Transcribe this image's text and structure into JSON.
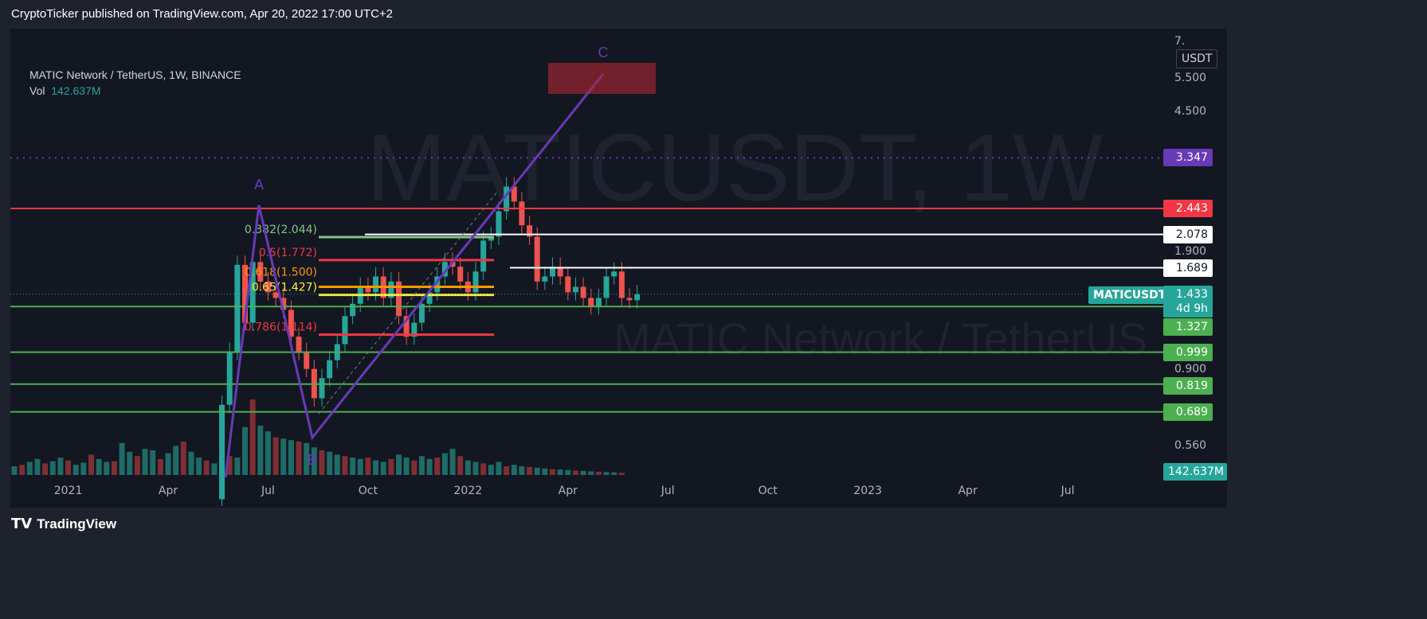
{
  "header": {
    "text": "CryptoTicker published on TradingView.com, Apr 20, 2022 17:00 UTC+2"
  },
  "legend": {
    "symbol": "MATIC Network / TetherUS, 1W, BINANCE",
    "vol_label": "Vol",
    "vol_value": "142.637M"
  },
  "watermark": {
    "line1": "MATICUSDT, 1W",
    "line2": "MATIC Network / TetherUS"
  },
  "footer": {
    "logo": "TradingView"
  },
  "colors": {
    "up": "#26a69a",
    "down": "#ef5350",
    "purple": "#673ab7",
    "green": "#4caf50",
    "red": "#f23645"
  },
  "chart_data": {
    "type": "candlestick",
    "title": "MATIC Network / TetherUS, 1W, BINANCE",
    "yscale": "log",
    "ylim": [
      0.5,
      7.2
    ],
    "currency": "USDT",
    "y_ticks": [
      "7.",
      "5.500",
      "4.500",
      "1.900",
      "0.900",
      "0.560"
    ],
    "x_ticks": [
      {
        "label": "2021",
        "w": 7
      },
      {
        "label": "Apr",
        "w": 20
      },
      {
        "label": "Jul",
        "w": 33
      },
      {
        "label": "Oct",
        "w": 46
      },
      {
        "label": "2022",
        "w": 59
      },
      {
        "label": "Apr",
        "w": 72
      },
      {
        "label": "Jul",
        "w": 85
      },
      {
        "label": "Oct",
        "w": 98
      },
      {
        "label": "2023",
        "w": 111
      },
      {
        "label": "Apr",
        "w": 124
      },
      {
        "label": "Jul",
        "w": 137
      }
    ],
    "closes_from_week27": [
      0.72,
      1.0,
      1.72,
      1.2,
      1.75,
      1.55,
      1.45,
      1.4,
      1.3,
      1.1,
      1.0,
      0.9,
      0.75,
      0.85,
      0.95,
      1.05,
      1.25,
      1.35,
      1.5,
      1.45,
      1.6,
      1.4,
      1.55,
      1.25,
      1.1,
      1.2,
      1.35,
      1.45,
      1.6,
      1.75,
      1.7,
      1.55,
      1.45,
      1.65,
      2.0,
      2.05,
      2.4,
      2.8,
      2.55,
      2.2,
      2.05,
      1.55,
      1.6,
      1.7,
      1.6,
      1.45,
      1.5,
      1.4,
      1.33,
      1.4,
      1.6,
      1.65,
      1.4,
      1.38,
      1.433
    ],
    "first_open": 0.4,
    "volume_millions": [
      60,
      70,
      90,
      110,
      80,
      95,
      120,
      100,
      70,
      85,
      140,
      110,
      90,
      95,
      220,
      160,
      130,
      180,
      170,
      110,
      150,
      200,
      230,
      160,
      120,
      100,
      80,
      140,
      130,
      120,
      330,
      520,
      340,
      300,
      260,
      250,
      240,
      230,
      220,
      190,
      170,
      160,
      140,
      130,
      120,
      110,
      120,
      100,
      90,
      110,
      140,
      120,
      100,
      130,
      110,
      120,
      150,
      180,
      130,
      100,
      90,
      80,
      70,
      90,
      60,
      70,
      60,
      55,
      50,
      45,
      40,
      38,
      35,
      30,
      28,
      25,
      22,
      20,
      18,
      15
    ],
    "horizontal_levels": [
      {
        "price": 3.347,
        "label": "3.347",
        "color": "#673ab7",
        "style": "dotted"
      },
      {
        "price": 2.443,
        "label": "2.443",
        "color": "#f23645"
      },
      {
        "price": 2.078,
        "label": "2.078",
        "color": "#ffffff"
      },
      {
        "price": 1.689,
        "label": "1.689",
        "color": "#ffffff"
      },
      {
        "price": 1.327,
        "label": "1.327",
        "color": "#4caf50"
      },
      {
        "price": 0.999,
        "label": "0.999",
        "color": "#4caf50"
      },
      {
        "price": 0.819,
        "label": "0.819",
        "color": "#4caf50"
      },
      {
        "price": 0.689,
        "label": "0.689",
        "color": "#4caf50"
      }
    ],
    "fib_levels": [
      {
        "price": 2.044,
        "label": "0.382(2.044)",
        "color": "#81c784"
      },
      {
        "price": 1.772,
        "label": "0.5(1.772)",
        "color": "#f23645"
      },
      {
        "price": 1.5,
        "label": "0.618(1.500)",
        "color": "#ff9800"
      },
      {
        "price": 1.427,
        "label": "0.65(1.427)",
        "color": "#ffeb3b"
      },
      {
        "price": 1.114,
        "label": "0.786(1.114)",
        "color": "#f23645"
      }
    ],
    "abc": [
      {
        "label": "A",
        "price": 2.5
      },
      {
        "label": "B",
        "price": 0.63
      },
      {
        "label": "C",
        "price": 5.6
      }
    ],
    "last": {
      "symbol": "MATICUSDT",
      "price": "1.433",
      "countdown": "4d 9h",
      "volume": "142.637M"
    }
  }
}
